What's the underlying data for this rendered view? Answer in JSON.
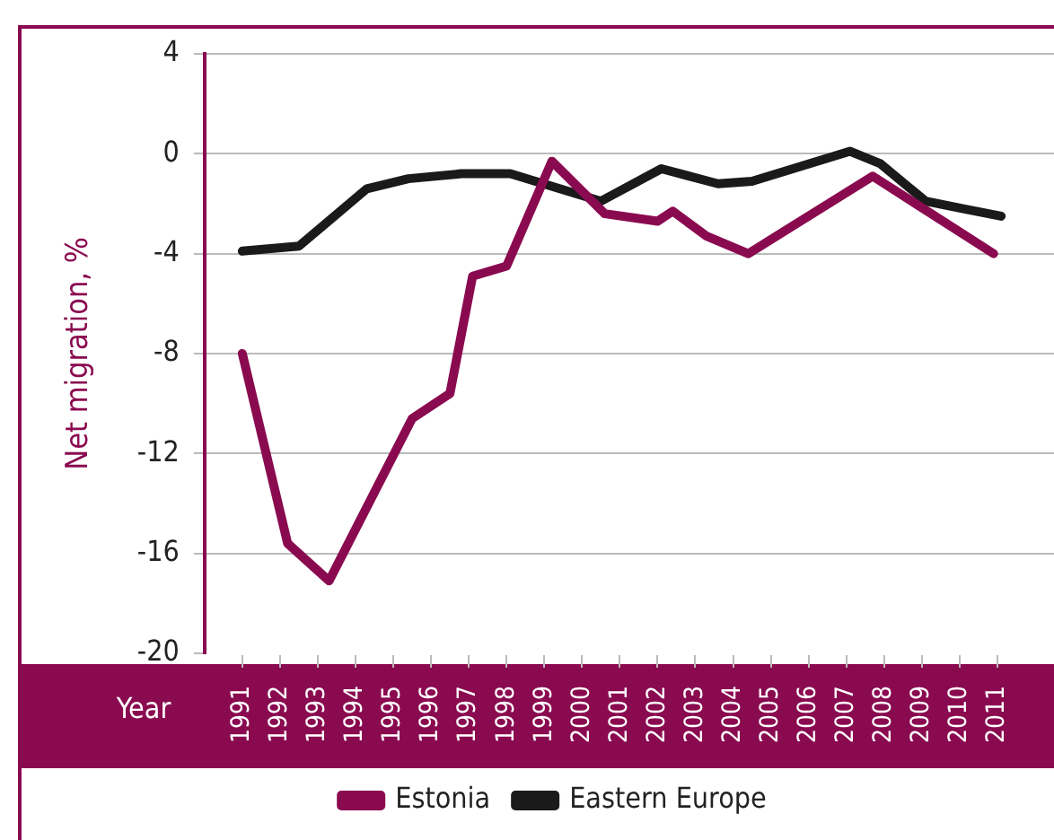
{
  "chart_data": {
    "type": "line",
    "xlabel": "Year",
    "ylabel": "Net migration, %",
    "xlim": [
      1990,
      2012.5
    ],
    "xticks": [
      1991,
      1992,
      1993,
      1994,
      1995,
      1996,
      1997,
      1998,
      1999,
      2000,
      2001,
      2002,
      2003,
      2004,
      2005,
      2006,
      2007,
      2008,
      2009,
      2010,
      2011
    ],
    "ylim": [
      -20,
      4
    ],
    "yticks": [
      4,
      0,
      -4,
      -8,
      -12,
      -16,
      -20
    ],
    "grid": "y",
    "legend": "bottom",
    "marker": "none",
    "line_style": "solid",
    "series": [
      {
        "name": "Estonia",
        "color": "#8a0a50",
        "x": [
          1991,
          1992.2,
          1993.3,
          1995.5,
          1996.5,
          1997.1,
          1998,
          1999.2,
          2000.6,
          2002,
          2002.4,
          2003.3,
          2004.4,
          2007.7,
          2010.9
        ],
        "values": [
          -8,
          -15.6,
          -17.1,
          -10.6,
          -9.6,
          -4.9,
          -4.5,
          -0.3,
          -2.4,
          -2.7,
          -2.3,
          -3.3,
          -4,
          -0.9,
          -4
        ]
      },
      {
        "name": "Eastern Europe",
        "color": "#1a1a1a",
        "x": [
          1991,
          1992.5,
          1994.3,
          1995.4,
          1996.8,
          1998.1,
          2000.5,
          2002.1,
          2003.6,
          2004.5,
          2007.1,
          2007.9,
          2009.1,
          2010.1,
          2011.1
        ],
        "values": [
          -3.9,
          -3.7,
          -1.4,
          -1,
          -0.8,
          -0.8,
          -1.9,
          -0.6,
          -1.2,
          -1.1,
          0.1,
          -0.4,
          -1.9,
          -2.2,
          -2.5
        ]
      }
    ]
  }
}
